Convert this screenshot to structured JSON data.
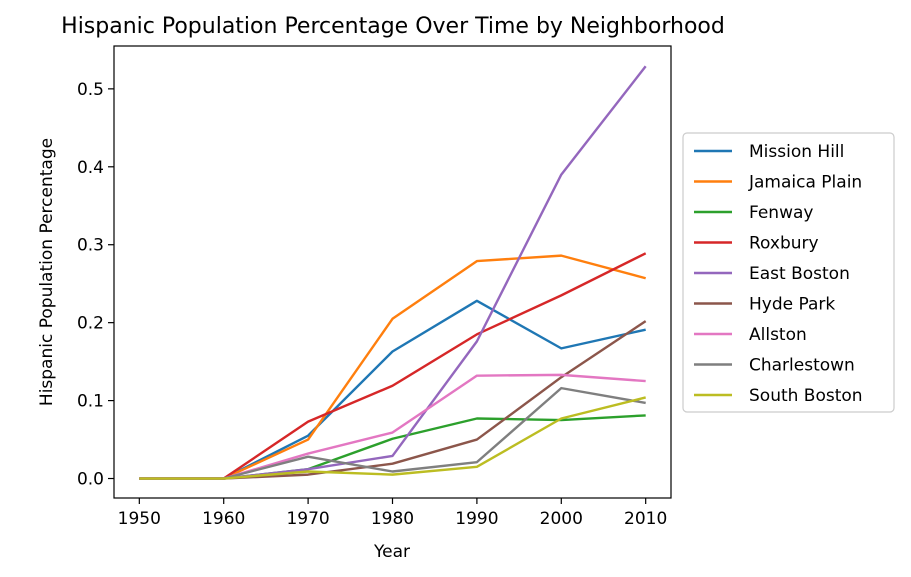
{
  "chart_data": {
    "type": "line",
    "title": "Hispanic Population Percentage Over Time by Neighborhood",
    "xlabel": "Year",
    "ylabel": "Hispanic Population Percentage",
    "x": [
      1950,
      1960,
      1970,
      1980,
      1990,
      2000,
      2010
    ],
    "xticks": [
      "1950",
      "1960",
      "1970",
      "1980",
      "1990",
      "2000",
      "2010"
    ],
    "yticks": [
      "0.0",
      "0.1",
      "0.2",
      "0.3",
      "0.4",
      "0.5"
    ],
    "xlim": [
      1947,
      2013
    ],
    "ylim": [
      -0.025,
      0.555
    ],
    "grid": false,
    "legend_position": "center-right-outside",
    "series": [
      {
        "name": "Mission Hill",
        "color": "#1f77b4",
        "values": [
          0.0,
          0.0,
          0.055,
          0.163,
          0.228,
          0.167,
          0.191
        ]
      },
      {
        "name": "Jamaica Plain",
        "color": "#ff7f0e",
        "values": [
          0.0,
          0.0,
          0.05,
          0.205,
          0.279,
          0.286,
          0.257
        ]
      },
      {
        "name": "Fenway",
        "color": "#2ca02c",
        "values": [
          0.0,
          0.0,
          0.012,
          0.051,
          0.077,
          0.075,
          0.081
        ]
      },
      {
        "name": "Roxbury",
        "color": "#d62728",
        "values": [
          0.0,
          0.0,
          0.073,
          0.119,
          0.185,
          0.235,
          0.289
        ]
      },
      {
        "name": "East Boston",
        "color": "#9467bd",
        "values": [
          0.0,
          0.0,
          0.012,
          0.029,
          0.176,
          0.39,
          0.529
        ]
      },
      {
        "name": "Hyde Park",
        "color": "#8c564b",
        "values": [
          0.0,
          0.0,
          0.005,
          0.019,
          0.05,
          0.13,
          0.202
        ]
      },
      {
        "name": "Allston",
        "color": "#e377c2",
        "values": [
          0.0,
          0.0,
          0.032,
          0.059,
          0.132,
          0.133,
          0.125
        ]
      },
      {
        "name": "Charlestown",
        "color": "#7f7f7f",
        "values": [
          0.0,
          0.0,
          0.028,
          0.009,
          0.021,
          0.116,
          0.097
        ]
      },
      {
        "name": "South Boston",
        "color": "#bcbd22",
        "values": [
          0.0,
          0.0,
          0.009,
          0.005,
          0.015,
          0.077,
          0.104
        ]
      }
    ]
  }
}
